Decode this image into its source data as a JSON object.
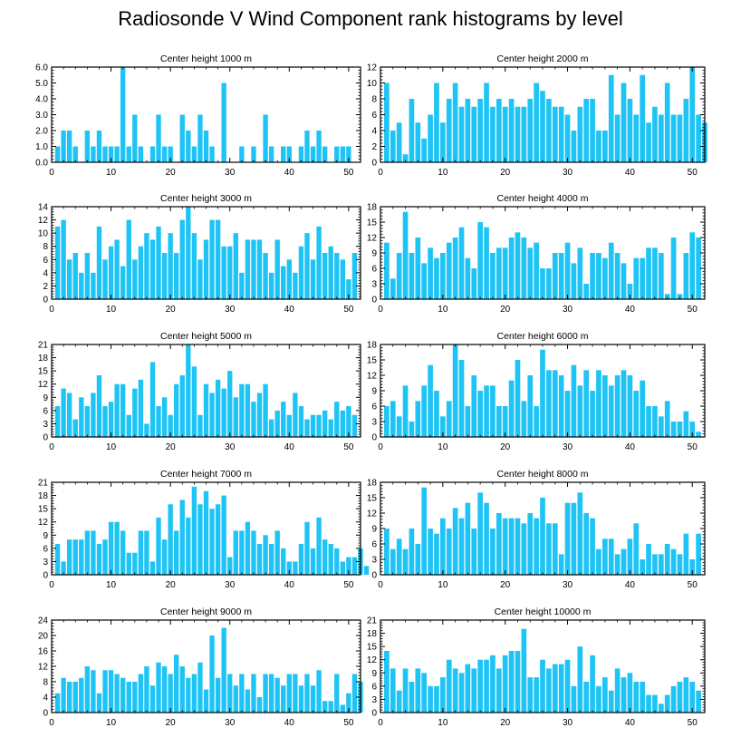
{
  "title": "Radiosonde V Wind Component rank histograms by level",
  "colors": {
    "bar": "#1ec4f5",
    "axis": "#000000"
  },
  "chart_data": [
    {
      "type": "bar",
      "title": "Center height 1000 m",
      "xlim": [
        0,
        52
      ],
      "ylim": [
        0,
        6
      ],
      "xticks": [
        0,
        10,
        20,
        30,
        40,
        50
      ],
      "yticks": [
        0,
        1,
        2,
        3,
        4,
        5,
        6
      ],
      "ytick_labels": [
        "0.0",
        "1.0",
        "2.0",
        "3.0",
        "4.0",
        "5.0",
        "6.0"
      ],
      "values": [
        1,
        2,
        2,
        1,
        0,
        2,
        1,
        2,
        1,
        1,
        1,
        6,
        1,
        3,
        1,
        0,
        1,
        3,
        1,
        1,
        0,
        3,
        2,
        1,
        3,
        2,
        1,
        0,
        5,
        0,
        0,
        1,
        0,
        1,
        0,
        3,
        1,
        0,
        1,
        1,
        0,
        1,
        2,
        1,
        2,
        1,
        0,
        1,
        1,
        1,
        0
      ]
    },
    {
      "type": "bar",
      "title": "Center height 2000 m",
      "xlim": [
        0,
        52
      ],
      "ylim": [
        0,
        12
      ],
      "xticks": [
        0,
        10,
        20,
        30,
        40,
        50
      ],
      "yticks": [
        0,
        2,
        4,
        6,
        8,
        10,
        12
      ],
      "ytick_labels": [
        "0",
        "2",
        "4",
        "6",
        "8",
        "10",
        "12"
      ],
      "values": [
        10,
        4,
        5,
        1,
        8,
        5,
        3,
        6,
        10,
        5,
        8,
        10,
        7,
        8,
        7,
        8,
        10,
        7,
        8,
        7,
        8,
        7,
        7,
        8,
        10,
        9,
        8,
        7,
        7,
        6,
        4,
        7,
        8,
        8,
        4,
        4,
        11,
        6,
        10,
        8,
        6,
        11,
        5,
        7,
        6,
        10,
        6,
        6,
        8,
        12,
        6,
        5
      ]
    },
    {
      "type": "bar",
      "title": "Center height 3000 m",
      "xlim": [
        0,
        52
      ],
      "ylim": [
        0,
        14
      ],
      "xticks": [
        0,
        10,
        20,
        30,
        40,
        50
      ],
      "yticks": [
        0,
        2,
        4,
        6,
        8,
        10,
        12,
        14
      ],
      "ytick_labels": [
        "0",
        "2",
        "4",
        "6",
        "8",
        "10",
        "12",
        "14"
      ],
      "values": [
        11,
        12,
        6,
        7,
        4,
        7,
        4,
        11,
        6,
        8,
        9,
        5,
        12,
        6,
        8,
        10,
        9,
        11,
        7,
        10,
        7,
        12,
        14,
        10,
        6,
        9,
        12,
        12,
        8,
        8,
        10,
        4,
        9,
        9,
        9,
        7,
        4,
        9,
        5,
        6,
        4,
        8,
        10,
        6,
        11,
        7,
        8,
        7,
        6,
        3,
        7
      ]
    },
    {
      "type": "bar",
      "title": "Center height 4000 m",
      "xlim": [
        0,
        52
      ],
      "ylim": [
        0,
        18
      ],
      "xticks": [
        0,
        10,
        20,
        30,
        40,
        50
      ],
      "yticks": [
        0,
        3,
        6,
        9,
        12,
        15,
        18
      ],
      "ytick_labels": [
        "0",
        "3",
        "6",
        "9",
        "12",
        "15",
        "18"
      ],
      "values": [
        11,
        4,
        9,
        17,
        9,
        12,
        7,
        10,
        8,
        9,
        11,
        12,
        14,
        8,
        6,
        15,
        14,
        9,
        10,
        10,
        12,
        13,
        12,
        10,
        11,
        6,
        6,
        9,
        9,
        11,
        7,
        10,
        3,
        9,
        9,
        8,
        11,
        9,
        7,
        3,
        8,
        8,
        10,
        10,
        9,
        1,
        12,
        1,
        9,
        13,
        12
      ]
    },
    {
      "type": "bar",
      "title": "Center height 5000 m",
      "xlim": [
        0,
        52
      ],
      "ylim": [
        0,
        21
      ],
      "xticks": [
        0,
        10,
        20,
        30,
        40,
        50
      ],
      "yticks": [
        0,
        3,
        6,
        9,
        12,
        15,
        18,
        21
      ],
      "ytick_labels": [
        "0",
        "3",
        "6",
        "9",
        "12",
        "15",
        "18",
        "21"
      ],
      "values": [
        7,
        11,
        10,
        4,
        9,
        7,
        10,
        14,
        7,
        8,
        12,
        12,
        5,
        11,
        13,
        3,
        17,
        7,
        9,
        5,
        12,
        14,
        21,
        16,
        5,
        12,
        10,
        13,
        11,
        15,
        9,
        12,
        12,
        8,
        10,
        12,
        4,
        6,
        8,
        5,
        10,
        7,
        4,
        5,
        5,
        6,
        4,
        8,
        6,
        7,
        5
      ]
    },
    {
      "type": "bar",
      "title": "Center height 6000 m",
      "xlim": [
        0,
        52
      ],
      "ylim": [
        0,
        18
      ],
      "xticks": [
        0,
        10,
        20,
        30,
        40,
        50
      ],
      "yticks": [
        0,
        3,
        6,
        9,
        12,
        15,
        18
      ],
      "ytick_labels": [
        "0",
        "3",
        "6",
        "9",
        "12",
        "15",
        "18"
      ],
      "values": [
        6,
        7,
        4,
        10,
        3,
        7,
        10,
        14,
        9,
        4,
        7,
        18,
        15,
        6,
        12,
        9,
        10,
        10,
        6,
        6,
        11,
        15,
        7,
        12,
        6,
        17,
        13,
        13,
        12,
        9,
        14,
        10,
        13,
        9,
        13,
        12,
        10,
        12,
        13,
        12,
        9,
        11,
        6,
        6,
        4,
        7,
        3,
        3,
        5,
        3,
        1
      ]
    },
    {
      "type": "bar",
      "title": "Center height 7000 m",
      "xlim": [
        0,
        52
      ],
      "ylim": [
        0,
        21
      ],
      "xticks": [
        0,
        10,
        20,
        30,
        40,
        50
      ],
      "yticks": [
        0,
        3,
        6,
        9,
        12,
        15,
        18,
        21
      ],
      "ytick_labels": [
        "0",
        "3",
        "6",
        "9",
        "12",
        "15",
        "18",
        "21"
      ],
      "values": [
        7,
        3,
        8,
        8,
        8,
        10,
        10,
        7,
        8,
        12,
        12,
        10,
        5,
        5,
        10,
        10,
        3,
        13,
        8,
        16,
        10,
        17,
        13,
        20,
        16,
        19,
        15,
        16,
        18,
        4,
        10,
        10,
        12,
        10,
        7,
        9,
        7,
        10,
        6,
        3,
        3,
        7,
        12,
        6,
        13,
        8,
        7,
        6,
        3,
        4,
        4,
        6,
        2
      ]
    },
    {
      "type": "bar",
      "title": "Center height 8000 m",
      "xlim": [
        0,
        52
      ],
      "ylim": [
        0,
        18
      ],
      "xticks": [
        0,
        10,
        20,
        30,
        40,
        50
      ],
      "yticks": [
        0,
        3,
        6,
        9,
        12,
        15,
        18
      ],
      "ytick_labels": [
        "0",
        "3",
        "6",
        "9",
        "12",
        "15",
        "18"
      ],
      "values": [
        9,
        5,
        7,
        5,
        9,
        6,
        17,
        9,
        8,
        11,
        9,
        13,
        11,
        14,
        9,
        16,
        14,
        9,
        12,
        11,
        11,
        11,
        10,
        12,
        11,
        15,
        10,
        10,
        4,
        14,
        14,
        16,
        12,
        11,
        5,
        7,
        7,
        4,
        5,
        7,
        10,
        3,
        6,
        4,
        4,
        6,
        5,
        4,
        8,
        3,
        8
      ]
    },
    {
      "type": "bar",
      "title": "Center height 9000 m",
      "xlim": [
        0,
        52
      ],
      "ylim": [
        0,
        24
      ],
      "xticks": [
        0,
        10,
        20,
        30,
        40,
        50
      ],
      "yticks": [
        0,
        4,
        8,
        12,
        16,
        20,
        24
      ],
      "ytick_labels": [
        "0",
        "4",
        "8",
        "12",
        "16",
        "20",
        "24"
      ],
      "values": [
        5,
        9,
        8,
        8,
        9,
        12,
        11,
        5,
        11,
        11,
        10,
        9,
        8,
        8,
        10,
        12,
        7,
        13,
        12,
        10,
        15,
        12,
        9,
        10,
        13,
        6,
        20,
        9,
        22,
        10,
        7,
        10,
        6,
        10,
        4,
        10,
        10,
        9,
        7,
        10,
        10,
        7,
        10,
        7,
        11,
        3,
        3,
        10,
        2,
        5,
        10,
        8
      ]
    },
    {
      "type": "bar",
      "title": "Center height 10000 m",
      "xlim": [
        0,
        52
      ],
      "ylim": [
        0,
        21
      ],
      "xticks": [
        0,
        10,
        20,
        30,
        40,
        50
      ],
      "yticks": [
        0,
        3,
        6,
        9,
        12,
        15,
        18,
        21
      ],
      "ytick_labels": [
        "0",
        "3",
        "6",
        "9",
        "12",
        "15",
        "18",
        "21"
      ],
      "values": [
        14,
        10,
        5,
        10,
        7,
        10,
        9,
        6,
        6,
        8,
        12,
        10,
        9,
        11,
        10,
        12,
        12,
        13,
        10,
        13,
        14,
        14,
        19,
        8,
        8,
        12,
        10,
        11,
        11,
        12,
        6,
        15,
        7,
        13,
        6,
        8,
        5,
        10,
        8,
        9,
        7,
        7,
        4,
        4,
        2,
        4,
        6,
        7,
        8,
        7,
        5
      ]
    }
  ]
}
